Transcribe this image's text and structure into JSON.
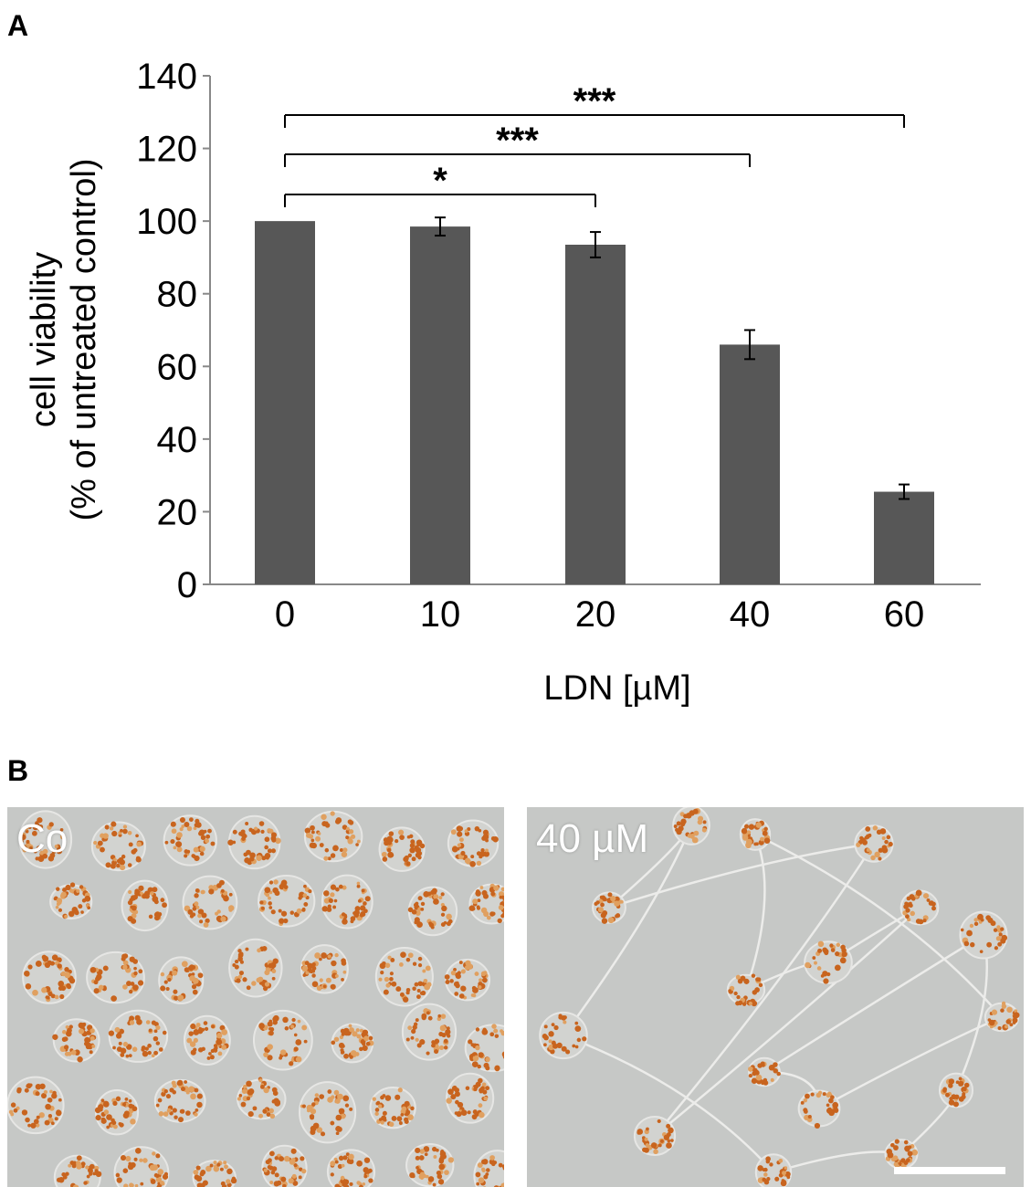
{
  "panel_a": {
    "letter": "A",
    "chart_data": {
      "type": "bar",
      "categories": [
        "0",
        "10",
        "20",
        "40",
        "60"
      ],
      "values": [
        100,
        98.5,
        93.5,
        66,
        25.5
      ],
      "errors": [
        0,
        2.5,
        3.5,
        4,
        2
      ],
      "ylim": [
        0,
        140
      ],
      "yticks": [
        "0",
        "20",
        "40",
        "60",
        "80",
        "100",
        "120",
        "140"
      ],
      "xlabel": "LDN [µM]",
      "ylabel_lines": [
        "cell viability",
        "(% of untreated control)"
      ],
      "bar_color": "#575757",
      "grid": false,
      "significance": [
        {
          "from": "0",
          "to": "20",
          "label": "*"
        },
        {
          "from": "0",
          "to": "40",
          "label": "***"
        },
        {
          "from": "0",
          "to": "60",
          "label": "***"
        }
      ]
    }
  },
  "panel_b": {
    "letter": "B",
    "images": [
      {
        "label": "Co",
        "description": "cells with dense orange lipid droplet staining"
      },
      {
        "label": "40 µM",
        "description": "fewer, elongated cells connected by thin processes"
      }
    ],
    "stain_color": "#c8641e",
    "background_color": "#c6c8c6"
  }
}
